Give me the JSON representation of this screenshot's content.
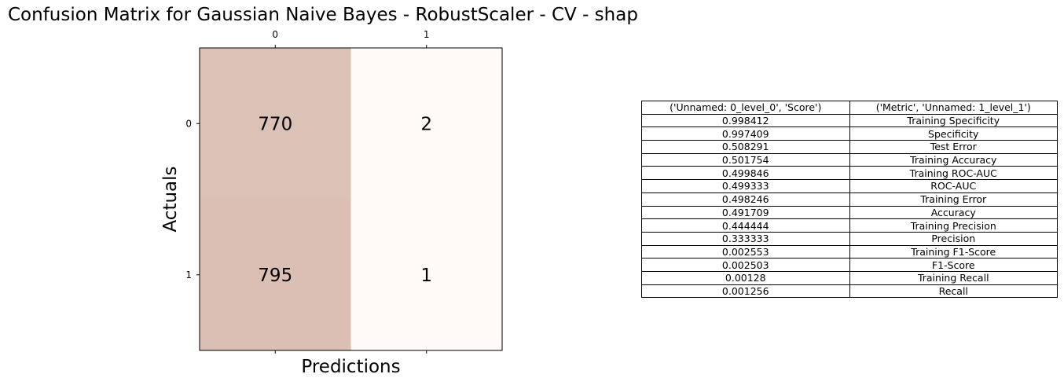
{
  "title": "Confusion Matrix for Gaussian Naive Bayes - RobustScaler - CV - shap",
  "colors": {
    "high": "#dbbfb4",
    "low": "#fffaf7",
    "axis": "#000000"
  },
  "chart_data": {
    "type": "heatmap",
    "title": "Confusion Matrix for Gaussian Naive Bayes - RobustScaler - CV - shap",
    "xlabel": "Predictions",
    "ylabel": "Actuals",
    "x_ticks": [
      "0",
      "1"
    ],
    "y_ticks": [
      "0",
      "1"
    ],
    "matrix": [
      [
        770,
        2
      ],
      [
        795,
        1
      ]
    ]
  },
  "table": {
    "headers": [
      "('Unnamed: 0_level_0', 'Score')",
      "('Metric', 'Unnamed: 1_level_1')"
    ],
    "rows": [
      [
        "0.998412",
        "Training Specificity"
      ],
      [
        "0.997409",
        "Specificity"
      ],
      [
        "0.508291",
        "Test Error"
      ],
      [
        "0.501754",
        "Training Accuracy"
      ],
      [
        "0.499846",
        "Training ROC-AUC"
      ],
      [
        "0.499333",
        "ROC-AUC"
      ],
      [
        "0.498246",
        "Training Error"
      ],
      [
        "0.491709",
        "Accuracy"
      ],
      [
        "0.444444",
        "Training Precision"
      ],
      [
        "0.333333",
        "Precision"
      ],
      [
        "0.002553",
        "Training F1-Score"
      ],
      [
        "0.002503",
        "F1-Score"
      ],
      [
        "0.00128",
        "Training Recall"
      ],
      [
        "0.001256",
        "Recall"
      ]
    ]
  }
}
